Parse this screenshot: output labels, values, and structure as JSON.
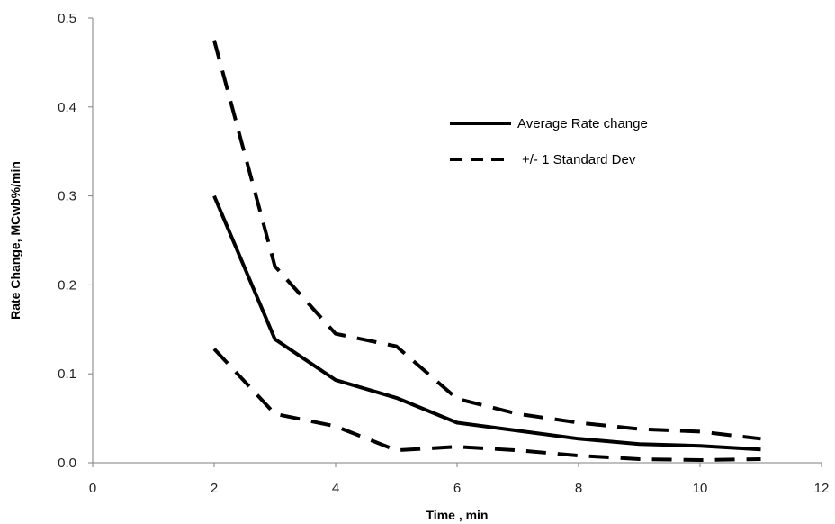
{
  "chart_data": {
    "type": "line",
    "title": "",
    "xlabel": "Time , min",
    "ylabel": "Rate Change, MCwb%/min",
    "xlim": [
      0,
      12
    ],
    "ylim": [
      0,
      0.5
    ],
    "x_ticks": [
      0,
      2,
      4,
      6,
      8,
      10,
      12
    ],
    "y_ticks": [
      0.0,
      0.1,
      0.2,
      0.3,
      0.4,
      0.5
    ],
    "x_tick_labels": [
      "0",
      "2",
      "4",
      "6",
      "8",
      "10",
      "12"
    ],
    "y_tick_labels": [
      "0.0",
      "0.1",
      "0.2",
      "0.3",
      "0.4",
      "0.5"
    ],
    "grid": false,
    "legend_position": "upper-right",
    "legend_entries": [
      "Average Rate change",
      "+/- 1 Standard Dev"
    ],
    "x": [
      2,
      3,
      4,
      5,
      6,
      7,
      8,
      9,
      10,
      11
    ],
    "series": [
      {
        "name": "Average Rate change",
        "style": "solid",
        "color": "#000000",
        "values": [
          0.3,
          0.139,
          0.093,
          0.073,
          0.045,
          0.036,
          0.027,
          0.021,
          0.019,
          0.015
        ]
      },
      {
        "name": "+/- 1 Standard Dev",
        "style": "dashed",
        "color": "#000000",
        "values": [
          0.475,
          0.221,
          0.145,
          0.131,
          0.072,
          0.055,
          0.045,
          0.038,
          0.035,
          0.027
        ]
      },
      {
        "name": "",
        "style": "dashed",
        "color": "#000000",
        "values": [
          0.128,
          0.055,
          0.041,
          0.014,
          0.018,
          0.014,
          0.008,
          0.004,
          0.003,
          0.004
        ]
      }
    ]
  }
}
